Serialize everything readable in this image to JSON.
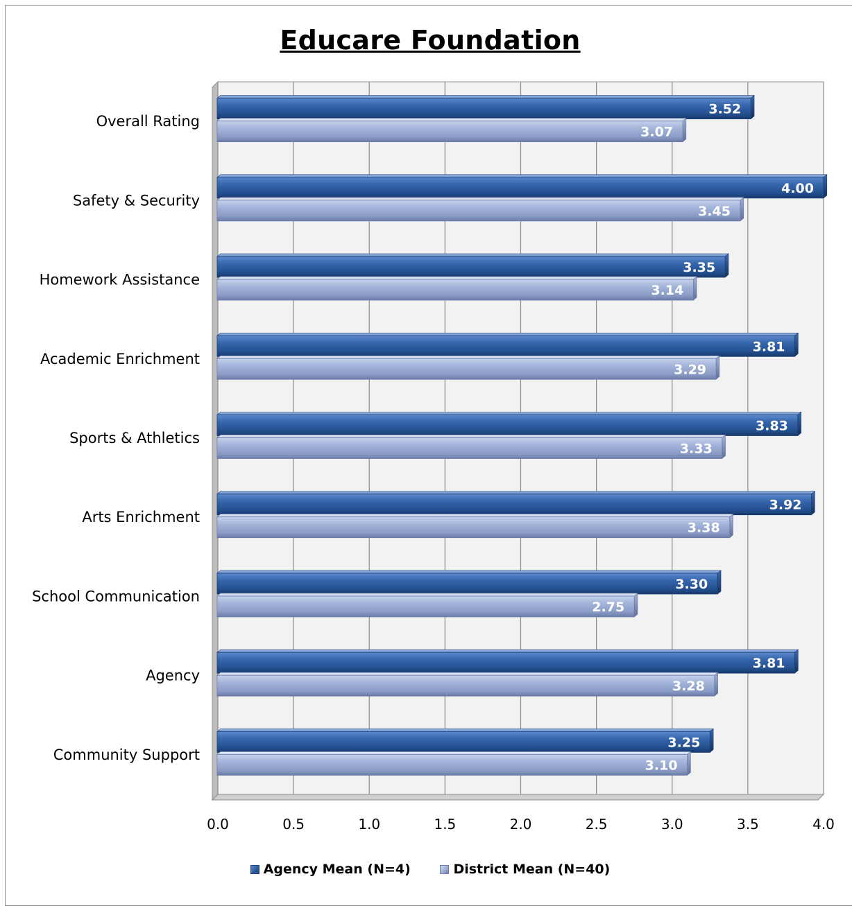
{
  "chart_data": {
    "type": "bar",
    "orientation": "horizontal",
    "title": "Educare Foundation",
    "categories": [
      "Overall Rating",
      "Safety & Security",
      "Homework Assistance",
      "Academic Enrichment",
      "Sports & Athletics",
      "Arts Enrichment",
      "School Communication",
      "Agency",
      "Community Support"
    ],
    "series": [
      {
        "name": "Agency Mean (N=4)",
        "values": [
          3.52,
          4.0,
          3.35,
          3.81,
          3.83,
          3.92,
          3.3,
          3.81,
          3.25
        ],
        "labels": [
          "3.52",
          "4.00",
          "3.35",
          "3.81",
          "3.83",
          "3.92",
          "3.30",
          "3.81",
          "3.25"
        ],
        "color": "#2e5b9e"
      },
      {
        "name": "District Mean (N=40)",
        "values": [
          3.07,
          3.45,
          3.14,
          3.29,
          3.33,
          3.38,
          2.75,
          3.28,
          3.1
        ],
        "labels": [
          "3.07",
          "3.45",
          "3.14",
          "3.29",
          "3.33",
          "3.38",
          "2.75",
          "3.28",
          "3.10"
        ],
        "color": "#9aabd1"
      }
    ],
    "xlim": [
      0,
      4
    ],
    "xticks": [
      "0.0",
      "0.5",
      "1.0",
      "1.5",
      "2.0",
      "2.5",
      "3.0",
      "3.5",
      "4.0"
    ],
    "xlabel": "",
    "ylabel": "",
    "grid": true,
    "legend_position": "bottom"
  },
  "legend": {
    "agency_label": "Agency Mean (N=4)",
    "district_label": "District Mean (N=40)"
  }
}
